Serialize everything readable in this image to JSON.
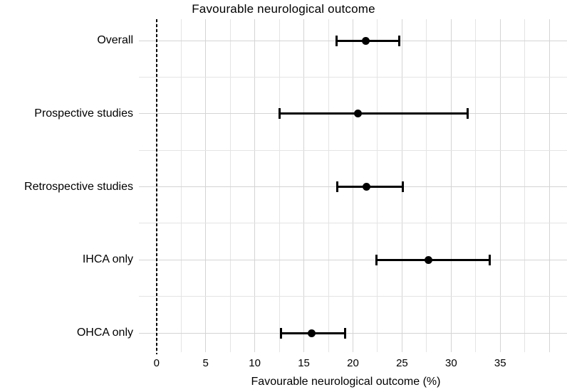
{
  "chart_data": {
    "type": "scatter",
    "subtype": "forest-plot",
    "title": "Favourable neurological outcome",
    "xlabel": "Favourable neurological outcome (%)",
    "ylabel": "",
    "categories": [
      "Overall",
      "Prospective studies",
      "Retrospective studies",
      "IHCA only",
      "OHCA only"
    ],
    "series": [
      {
        "name": "Favourable neurological outcome (%)",
        "points": [
          {
            "category": "Overall",
            "estimate": 21.3,
            "ci_low": 18.3,
            "ci_high": 24.7
          },
          {
            "category": "Prospective studies",
            "estimate": 20.5,
            "ci_low": 12.5,
            "ci_high": 31.7
          },
          {
            "category": "Retrospective studies",
            "estimate": 21.4,
            "ci_low": 18.4,
            "ci_high": 25.1
          },
          {
            "category": "IHCA only",
            "estimate": 27.7,
            "ci_low": 22.4,
            "ci_high": 33.9
          },
          {
            "category": "OHCA only",
            "estimate": 15.8,
            "ci_low": 12.7,
            "ci_high": 19.2
          }
        ]
      }
    ],
    "xticks": [
      0,
      5,
      10,
      15,
      20,
      25,
      30,
      35
    ],
    "xlim": [
      -1.8,
      41.8
    ],
    "minor_tick_step": 2.5,
    "reference_line_x": 0,
    "grid": "on",
    "legend": "none",
    "error_bars": true,
    "colors": {
      "point": "#000000",
      "error_bar": "#000000",
      "reference_line": "#000000",
      "grid_major": "#d4d4d4",
      "grid_minor": "#e4e4e4",
      "text": "#000000",
      "background": "#ffffff"
    }
  }
}
